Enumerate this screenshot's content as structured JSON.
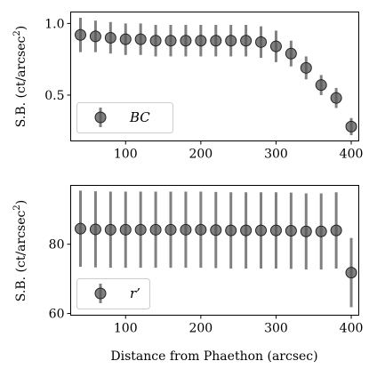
{
  "chart_data": [
    {
      "type": "scatter",
      "panel": "top",
      "title": "",
      "xlabel": "",
      "ylabel": "S.B. (ct/arcsec",
      "ylabel_sup": "2",
      "ylabel_end": ")",
      "xlim": [
        27,
        410
      ],
      "ylim": [
        0.18,
        1.08
      ],
      "xticks": [
        "100",
        "200",
        "300",
        "400"
      ],
      "xtick_values": [
        100,
        200,
        300,
        400
      ],
      "yticks": [
        "0.5",
        "1.0"
      ],
      "ytick_values": [
        0.5,
        1.0
      ],
      "legend": {
        "label": "BC",
        "placement": "bottom-left"
      },
      "marker_color": "#555555",
      "series": [
        {
          "name": "BC",
          "x": [
            40,
            60,
            80,
            100,
            120,
            140,
            160,
            180,
            200,
            220,
            240,
            260,
            280,
            300,
            320,
            340,
            360,
            380,
            400
          ],
          "y": [
            0.92,
            0.91,
            0.9,
            0.89,
            0.89,
            0.88,
            0.88,
            0.88,
            0.88,
            0.88,
            0.88,
            0.88,
            0.87,
            0.84,
            0.79,
            0.69,
            0.57,
            0.48,
            0.28
          ],
          "err": [
            0.12,
            0.11,
            0.11,
            0.11,
            0.11,
            0.11,
            0.11,
            0.11,
            0.11,
            0.11,
            0.11,
            0.11,
            0.11,
            0.11,
            0.09,
            0.08,
            0.07,
            0.07,
            0.06
          ]
        }
      ]
    },
    {
      "type": "scatter",
      "panel": "bottom",
      "title": "",
      "xlabel": "Distance from Phaethon (arcsec)",
      "ylabel": "S.B. (ct/arcsec",
      "ylabel_sup": "2",
      "ylabel_end": ")",
      "xlim": [
        27,
        410
      ],
      "ylim": [
        59.5,
        97
      ],
      "xticks": [
        "100",
        "200",
        "300",
        "400"
      ],
      "xtick_values": [
        100,
        200,
        300,
        400
      ],
      "yticks": [
        "60",
        "80"
      ],
      "ytick_values": [
        60,
        80
      ],
      "legend": {
        "label": "r’",
        "placement": "bottom-left"
      },
      "marker_color": "#555555",
      "series": [
        {
          "name": "r’",
          "x": [
            40,
            60,
            80,
            100,
            120,
            140,
            160,
            180,
            200,
            220,
            240,
            260,
            280,
            300,
            320,
            340,
            360,
            380,
            400
          ],
          "y": [
            84.5,
            84.3,
            84.2,
            84.2,
            84.2,
            84.2,
            84.2,
            84.2,
            84.2,
            84.1,
            84.0,
            84.0,
            84.0,
            84.0,
            83.9,
            83.7,
            83.7,
            84.0,
            71.8
          ],
          "err": [
            11,
            11,
            11,
            11,
            11,
            11,
            11,
            11,
            11,
            11,
            11,
            11,
            11,
            11,
            11,
            11,
            11,
            11,
            10
          ]
        }
      ]
    }
  ]
}
